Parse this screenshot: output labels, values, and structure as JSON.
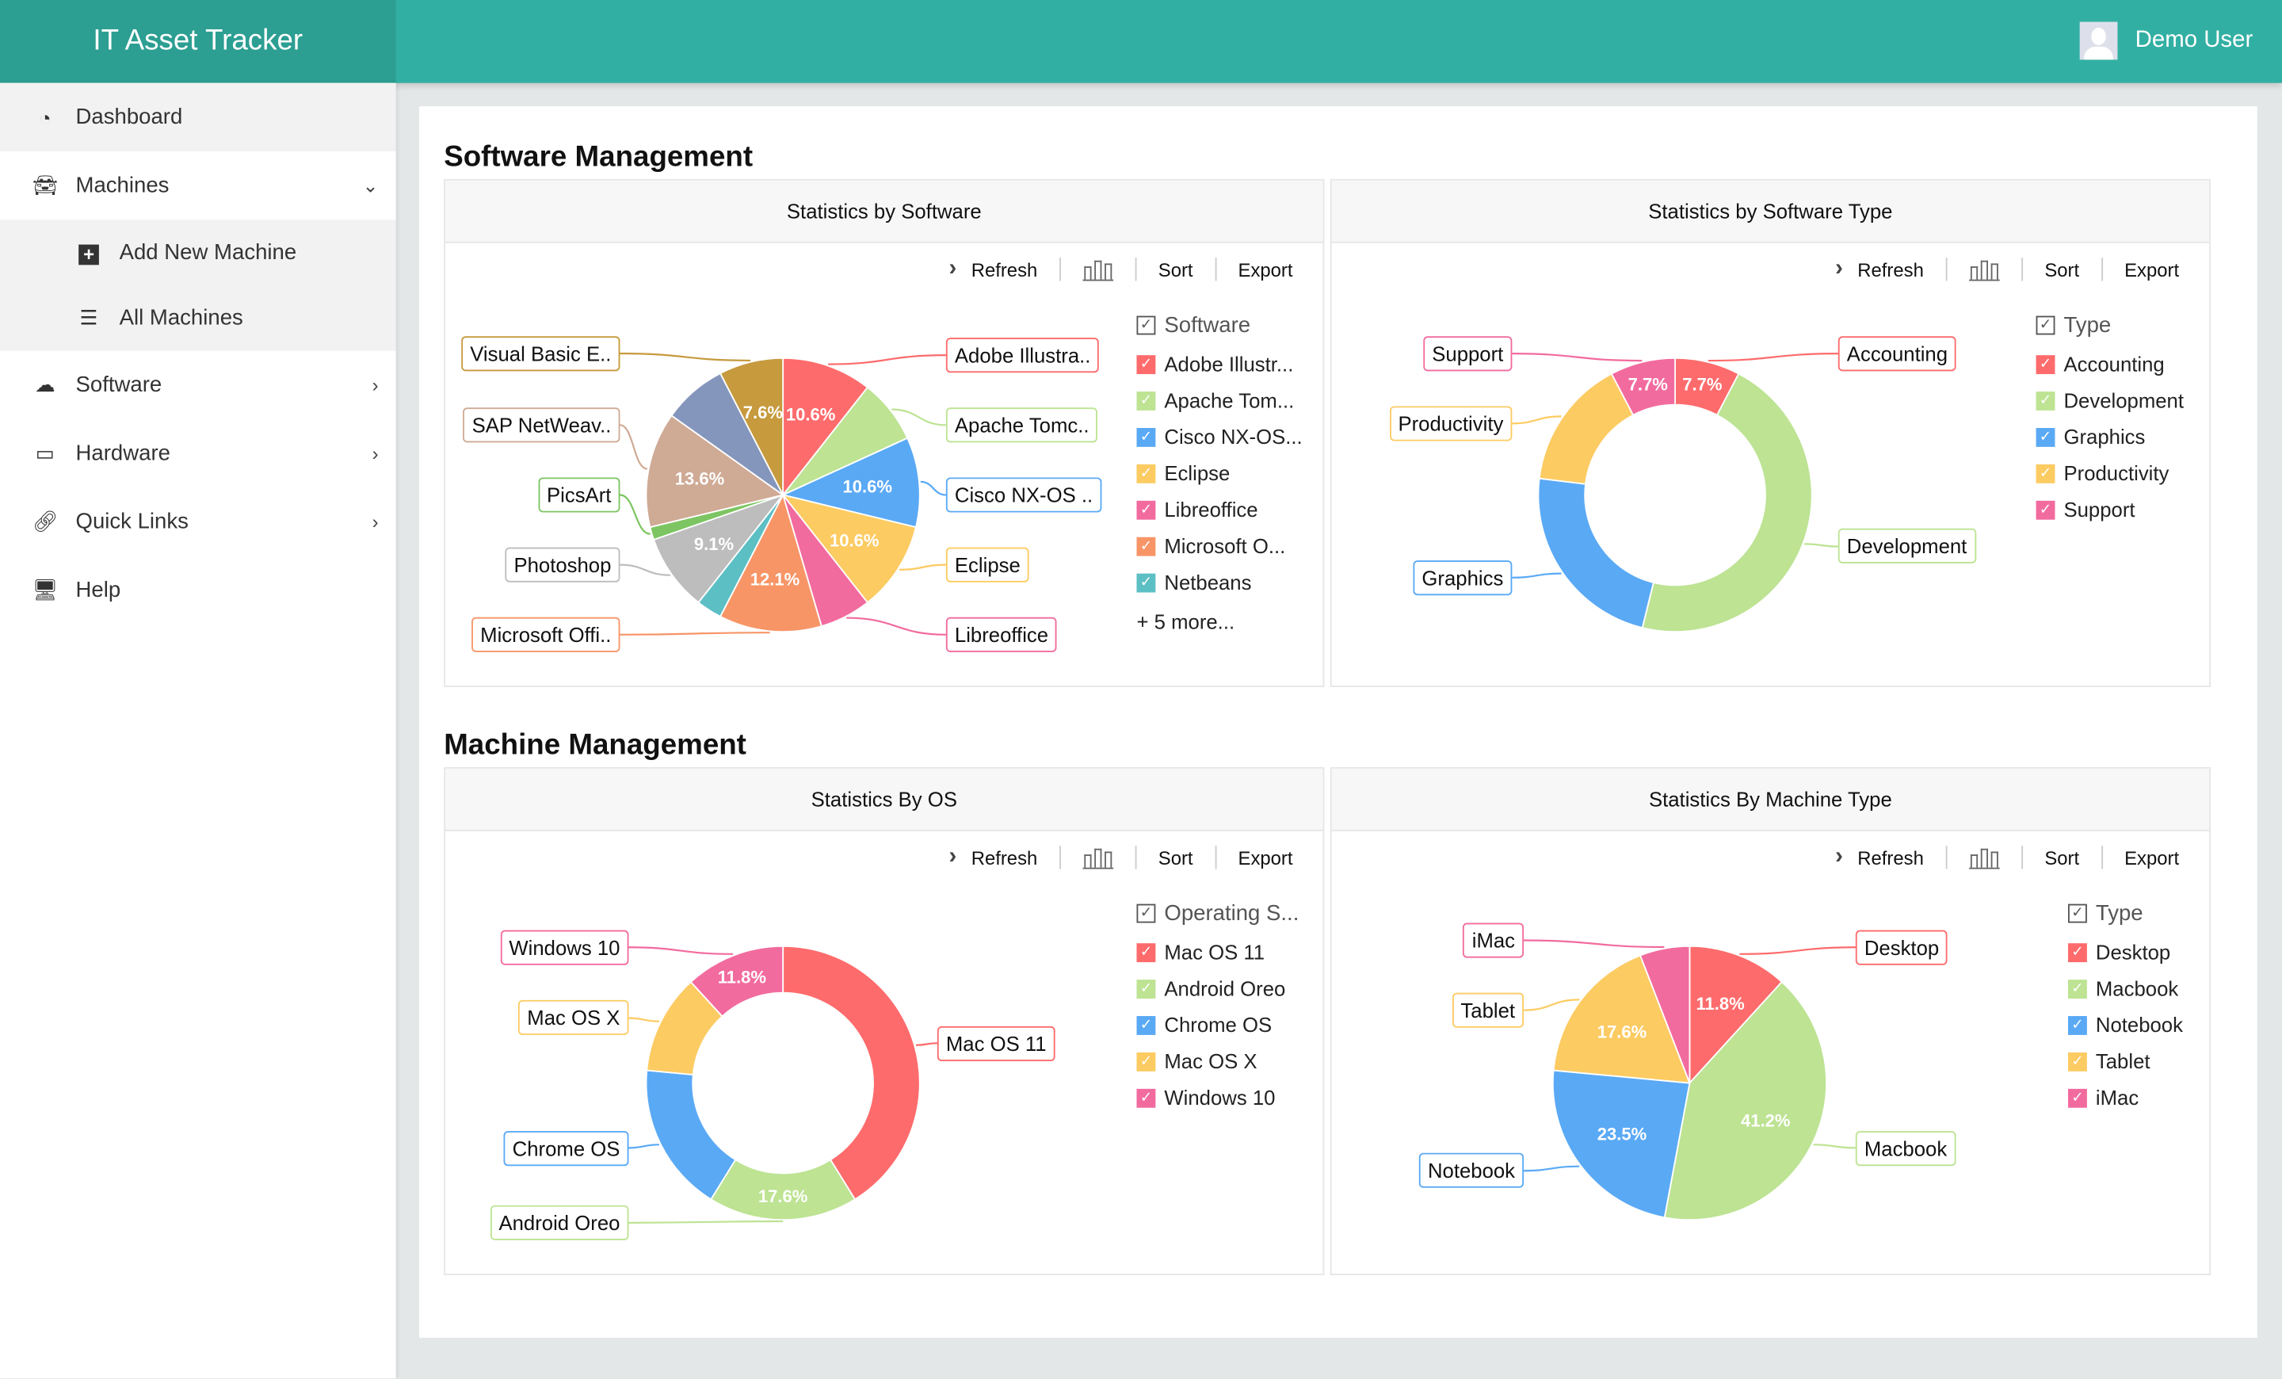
{
  "app": {
    "title": "IT Asset Tracker",
    "user": "Demo User"
  },
  "sidebar": {
    "items": [
      {
        "label": "Dashboard",
        "icon": "dashboard-icon"
      },
      {
        "label": "Machines",
        "icon": "car-icon"
      },
      {
        "label": "Add New Machine",
        "icon": "plus-square-icon"
      },
      {
        "label": "All Machines",
        "icon": "database-icon"
      },
      {
        "label": "Software",
        "icon": "cloud-icon"
      },
      {
        "label": "Hardware",
        "icon": "laptop-icon"
      },
      {
        "label": "Quick Links",
        "icon": "link-icon"
      },
      {
        "label": "Help",
        "icon": "monitor-icon"
      }
    ]
  },
  "sections": {
    "software": "Software Management",
    "machine": "Machine Management"
  },
  "toolbar": {
    "refresh": "Refresh",
    "sort": "Sort",
    "export": "Export"
  },
  "chart_data": [
    {
      "type": "pie",
      "title": "Statistics by Software",
      "legend_title": "Software",
      "legend_more": "+ 5 more...",
      "legend_count": 8,
      "slices": [
        {
          "name": "Adobe Illustrator",
          "legend": "Adobe Illustr...",
          "callout": "Adobe Illustra..",
          "value": 7,
          "pct": "10.6%",
          "color": "#fe6b6c"
        },
        {
          "name": "Apache Tomcat",
          "legend": "Apache Tom...",
          "callout": "Apache Tomc..",
          "value": 5,
          "pct": null,
          "color": "#bde393"
        },
        {
          "name": "Cisco NX-OS",
          "legend": "Cisco NX-OS...",
          "callout": "Cisco NX-OS ..",
          "value": 7,
          "pct": "10.6%",
          "color": "#5aa9f5"
        },
        {
          "name": "Eclipse",
          "legend": "Eclipse",
          "callout": "Eclipse",
          "value": 7,
          "pct": "10.6%",
          "color": "#fccb62"
        },
        {
          "name": "Libreoffice",
          "legend": "Libreoffice",
          "callout": "Libreoffice",
          "value": 4,
          "pct": null,
          "color": "#f26b9e"
        },
        {
          "name": "Microsoft Office",
          "legend": "Microsoft O...",
          "callout": "Microsoft Offi..",
          "value": 8,
          "pct": "12.1%",
          "color": "#f79567"
        },
        {
          "name": "Netbeans",
          "legend": "Netbeans",
          "callout": null,
          "value": 2,
          "pct": null,
          "color": "#5cbfc4"
        },
        {
          "name": "Photoshop",
          "legend": null,
          "callout": "Photoshop",
          "value": 6,
          "pct": "9.1%",
          "color": "#bdbdbd"
        },
        {
          "name": "PicsArt",
          "legend": null,
          "callout": "PicsArt",
          "value": 1,
          "pct": null,
          "color": "#7dc562"
        },
        {
          "name": "SAP NetWeaver",
          "legend": null,
          "callout": "SAP NetWeav..",
          "value": 9,
          "pct": "13.6%",
          "color": "#cfaa95"
        },
        {
          "name": null,
          "legend": null,
          "callout": null,
          "value": 5,
          "pct": null,
          "color": "#8596bc"
        },
        {
          "name": "Visual Basic Editor",
          "legend": null,
          "callout": "Visual Basic E..",
          "value": 5,
          "pct": "7.6%",
          "color": "#c69a3d"
        }
      ]
    },
    {
      "type": "donut",
      "title": "Statistics by Software Type",
      "legend_title": "Type",
      "slices": [
        {
          "name": "Accounting",
          "legend": "Accounting",
          "callout": "Accounting",
          "value": 1,
          "pct": "7.7%",
          "color": "#fe6b6c"
        },
        {
          "name": "Development",
          "legend": "Development",
          "callout": "Development",
          "value": 6,
          "pct": null,
          "color": "#bde393"
        },
        {
          "name": "Graphics",
          "legend": "Graphics",
          "callout": "Graphics",
          "value": 3,
          "pct": null,
          "color": "#5aa9f5"
        },
        {
          "name": "Productivity",
          "legend": "Productivity",
          "callout": "Productivity",
          "value": 2,
          "pct": null,
          "color": "#fccb62"
        },
        {
          "name": "Support",
          "legend": "Support",
          "callout": "Support",
          "value": 1,
          "pct": "7.7%",
          "color": "#f26b9e"
        }
      ]
    },
    {
      "type": "donut",
      "title": "Statistics By OS",
      "legend_title": "Operating S...",
      "slices": [
        {
          "name": "Mac OS 11",
          "legend": "Mac OS 11",
          "callout": "Mac OS 11",
          "value": 7,
          "pct": null,
          "color": "#fe6b6c"
        },
        {
          "name": "Android Oreo",
          "legend": "Android Oreo",
          "callout": "Android Oreo",
          "value": 3,
          "pct": "17.6%",
          "color": "#bde393"
        },
        {
          "name": "Chrome OS",
          "legend": "Chrome OS",
          "callout": "Chrome OS",
          "value": 3,
          "pct": null,
          "color": "#5aa9f5"
        },
        {
          "name": "Mac OS X",
          "legend": "Mac OS X",
          "callout": "Mac OS X",
          "value": 2,
          "pct": null,
          "color": "#fccb62"
        },
        {
          "name": "Windows 10",
          "legend": "Windows 10",
          "callout": "Windows 10",
          "value": 2,
          "pct": "11.8%",
          "color": "#f26b9e"
        }
      ]
    },
    {
      "type": "pie",
      "title": "Statistics By Machine Type",
      "legend_title": "Type",
      "slices": [
        {
          "name": "Desktop",
          "legend": "Desktop",
          "callout": "Desktop",
          "value": 2,
          "pct": "11.8%",
          "color": "#fe6b6c"
        },
        {
          "name": "Macbook",
          "legend": "Macbook",
          "callout": "Macbook",
          "value": 7,
          "pct": "41.2%",
          "color": "#bde393"
        },
        {
          "name": "Notebook",
          "legend": "Notebook",
          "callout": "Notebook",
          "value": 4,
          "pct": "23.5%",
          "color": "#5aa9f5"
        },
        {
          "name": "Tablet",
          "legend": "Tablet",
          "callout": "Tablet",
          "value": 3,
          "pct": "17.6%",
          "color": "#fccb62"
        },
        {
          "name": "iMac",
          "legend": "iMac",
          "callout": "iMac",
          "value": 1,
          "pct": null,
          "color": "#f26b9e"
        }
      ]
    }
  ]
}
